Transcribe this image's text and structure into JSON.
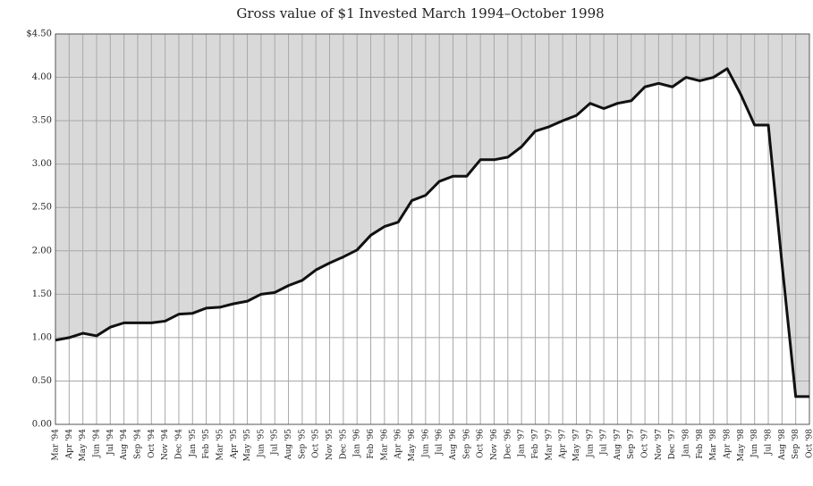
{
  "chart_data": {
    "type": "area-line",
    "title": "Gross value of $1 Invested March 1994–October 1998",
    "categories": [
      "Mar '94",
      "Apr '94",
      "May '94",
      "Jun '94",
      "Jul '94",
      "Aug '94",
      "Sep '94",
      "Oct '94",
      "Nov '94",
      "Dec '94",
      "Jan '95",
      "Feb '95",
      "Mar '95",
      "Apr '95",
      "May '95",
      "Jun '95",
      "Jul '95",
      "Aug '95",
      "Sep '95",
      "Oct '95",
      "Nov '95",
      "Dec '95",
      "Jan '96",
      "Feb '96",
      "Mar '96",
      "Apr '96",
      "May '96",
      "Jun '96",
      "Jul '96",
      "Aug '96",
      "Sep '96",
      "Oct '96",
      "Nov '96",
      "Dec '96",
      "Jan '97",
      "Feb '97",
      "Mar '97",
      "Apr '97",
      "May '97",
      "Jun '97",
      "Jul '97",
      "Aug '97",
      "Sep '97",
      "Oct '97",
      "Nov '97",
      "Dec '97",
      "Jan '98",
      "Feb '98",
      "Mar '98",
      "Apr '98",
      "May '98",
      "Jun '98",
      "Jul '98",
      "Aug '98",
      "Sep '98",
      "Oct '98"
    ],
    "values": [
      0.97,
      1.0,
      1.05,
      1.02,
      1.12,
      1.17,
      1.17,
      1.17,
      1.19,
      1.27,
      1.28,
      1.34,
      1.35,
      1.39,
      1.42,
      1.5,
      1.52,
      1.6,
      1.66,
      1.78,
      1.86,
      1.93,
      2.01,
      2.18,
      2.28,
      2.33,
      2.58,
      2.64,
      2.8,
      2.86,
      2.86,
      3.05,
      3.05,
      3.08,
      3.2,
      3.38,
      3.43,
      3.5,
      3.56,
      3.7,
      3.64,
      3.7,
      3.73,
      3.89,
      3.93,
      3.89,
      4.0,
      3.96,
      4.0,
      4.1,
      3.8,
      3.45,
      3.45,
      1.85,
      0.32,
      0.32
    ],
    "color": "#111111",
    "fill": "#ffffff",
    "background": "#d9d9d9",
    "ylim": [
      0,
      4.5
    ],
    "yticks": [
      {
        "value": 0,
        "label": "0.00"
      },
      {
        "value": 0.5,
        "label": "0.50"
      },
      {
        "value": 1,
        "label": "1.00"
      },
      {
        "value": 1.5,
        "label": "1.50"
      },
      {
        "value": 2,
        "label": "2.00"
      },
      {
        "value": 2.5,
        "label": "2.50"
      },
      {
        "value": 3,
        "label": "3.00"
      },
      {
        "value": 3.5,
        "label": "3.50"
      },
      {
        "value": 4,
        "label": "4.00"
      },
      {
        "value": 4.5,
        "label": "$4.50"
      }
    ],
    "grid": true
  }
}
